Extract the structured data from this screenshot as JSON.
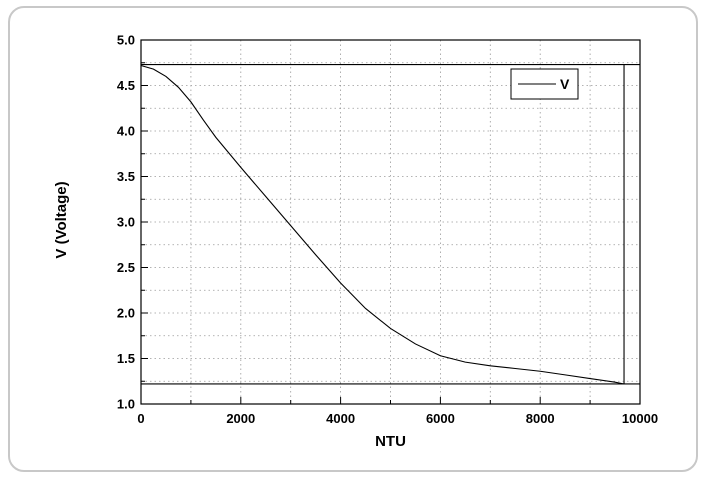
{
  "chart_data": {
    "type": "line",
    "title": "",
    "xlabel": "NTU",
    "ylabel": "V (Voltage)",
    "xlim": [
      0,
      10000
    ],
    "ylim": [
      1.0,
      5.0
    ],
    "xticks": [
      "0",
      "2000",
      "4000",
      "6000",
      "8000",
      "10000"
    ],
    "xtick_values": [
      0,
      2000,
      4000,
      6000,
      8000,
      10000
    ],
    "yticks": [
      "1.0",
      "1.5",
      "2.0",
      "2.5",
      "3.0",
      "3.5",
      "4.0",
      "4.5",
      "5.0"
    ],
    "ytick_values": [
      1.0,
      1.5,
      2.0,
      2.5,
      3.0,
      3.5,
      4.0,
      4.5,
      5.0
    ],
    "grid": true,
    "legend_position": "top-right",
    "reference_lines": [
      {
        "orientation": "horizontal",
        "value": 4.73
      },
      {
        "orientation": "horizontal",
        "value": 1.22
      },
      {
        "orientation": "vertical",
        "value": 9680
      }
    ],
    "series": [
      {
        "name": "V",
        "x": [
          0,
          250,
          500,
          750,
          1000,
          1250,
          1500,
          2000,
          2500,
          3000,
          3500,
          4000,
          4500,
          5000,
          5500,
          6000,
          6500,
          7000,
          7500,
          8000,
          8500,
          9000,
          9500,
          9680
        ],
        "y": [
          4.72,
          4.68,
          4.6,
          4.48,
          4.32,
          4.12,
          3.93,
          3.6,
          3.28,
          2.96,
          2.64,
          2.33,
          2.05,
          1.83,
          1.66,
          1.53,
          1.46,
          1.42,
          1.39,
          1.36,
          1.32,
          1.28,
          1.24,
          1.22
        ]
      }
    ]
  }
}
